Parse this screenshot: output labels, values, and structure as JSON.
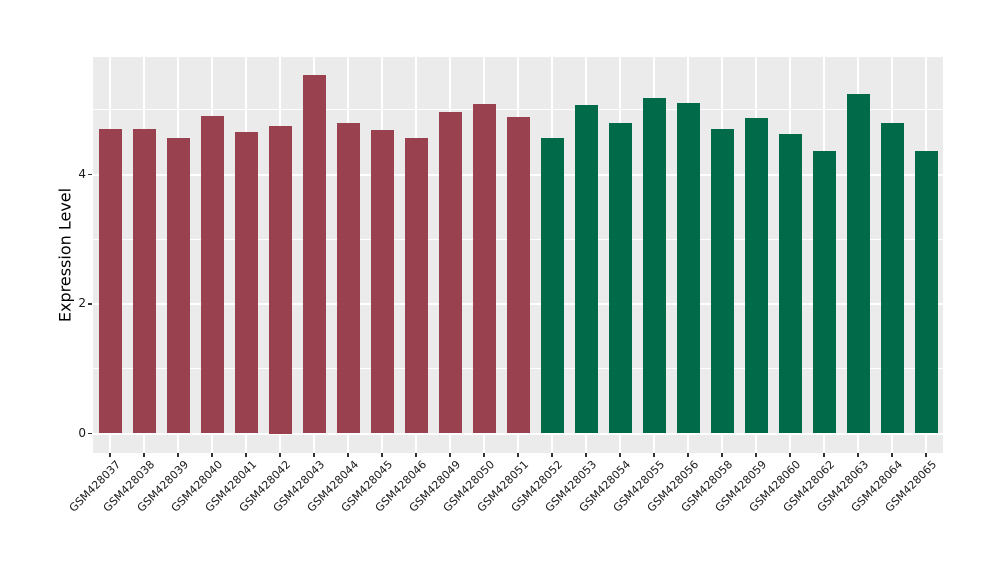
{
  "chart_data": {
    "type": "bar",
    "title": "",
    "xlabel": "",
    "ylabel": "Expression Level",
    "ylim": [
      0,
      5.81
    ],
    "yticks_major": [
      0,
      2,
      4
    ],
    "yticks_minor": [
      1,
      3,
      5
    ],
    "grid": true,
    "legend_position": "none",
    "panel_background": "#EBEBEB",
    "gridline_color": "#FFFFFF",
    "categories": [
      "GSM428037",
      "GSM428038",
      "GSM428039",
      "GSM428040",
      "GSM428041",
      "GSM428042",
      "GSM428043",
      "GSM428044",
      "GSM428045",
      "GSM428046",
      "GSM428049",
      "GSM428050",
      "GSM428051",
      "GSM428052",
      "GSM428053",
      "GSM428054",
      "GSM428055",
      "GSM428056",
      "GSM428058",
      "GSM428059",
      "GSM428060",
      "GSM428062",
      "GSM428063",
      "GSM428064",
      "GSM428065"
    ],
    "values": [
      4.7,
      4.7,
      4.57,
      4.9,
      4.66,
      4.75,
      5.53,
      4.8,
      4.68,
      4.57,
      4.97,
      5.09,
      4.89,
      4.57,
      5.07,
      4.79,
      5.18,
      5.11,
      4.7,
      4.87,
      4.62,
      4.36,
      5.24,
      4.8,
      4.36
    ],
    "groups": [
      "group1",
      "group1",
      "group1",
      "group1",
      "group1",
      "group1",
      "group1",
      "group1",
      "group1",
      "group1",
      "group1",
      "group1",
      "group1",
      "group2",
      "group2",
      "group2",
      "group2",
      "group2",
      "group2",
      "group2",
      "group2",
      "group2",
      "group2",
      "group2",
      "group2"
    ],
    "group_colors": {
      "group1": "#9A4150",
      "group2": "#016A48"
    }
  }
}
